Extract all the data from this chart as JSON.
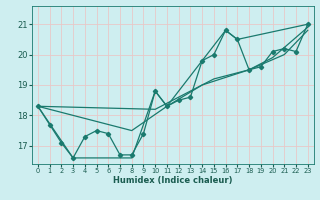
{
  "xlabel": "Humidex (Indice chaleur)",
  "background_color": "#ceeef0",
  "grid_color_v": "#e8c8c8",
  "grid_color_h": "#e8c8c8",
  "line_color": "#1a7a6e",
  "xlim": [
    -0.5,
    23.5
  ],
  "ylim": [
    16.4,
    21.6
  ],
  "xticks": [
    0,
    1,
    2,
    3,
    4,
    5,
    6,
    7,
    8,
    9,
    10,
    11,
    12,
    13,
    14,
    15,
    16,
    17,
    18,
    19,
    20,
    21,
    22,
    23
  ],
  "yticks": [
    17,
    18,
    19,
    20,
    21
  ],
  "series": [
    [
      0,
      18.3
    ],
    [
      1,
      17.7
    ],
    [
      2,
      17.1
    ],
    [
      3,
      16.6
    ],
    [
      4,
      17.3
    ],
    [
      5,
      17.5
    ],
    [
      6,
      17.4
    ],
    [
      7,
      16.7
    ],
    [
      8,
      16.7
    ],
    [
      9,
      17.4
    ],
    [
      10,
      18.8
    ],
    [
      11,
      18.3
    ],
    [
      12,
      18.5
    ],
    [
      13,
      18.6
    ],
    [
      14,
      19.8
    ],
    [
      15,
      20.0
    ],
    [
      16,
      20.8
    ],
    [
      17,
      20.5
    ],
    [
      18,
      19.5
    ],
    [
      19,
      19.6
    ],
    [
      20,
      20.1
    ],
    [
      21,
      20.2
    ],
    [
      22,
      20.1
    ],
    [
      23,
      21.0
    ]
  ],
  "line2": [
    [
      0,
      18.3
    ],
    [
      3,
      16.6
    ],
    [
      8,
      16.6
    ],
    [
      10,
      18.8
    ],
    [
      11,
      18.3
    ],
    [
      14,
      19.8
    ],
    [
      16,
      20.8
    ],
    [
      17,
      20.5
    ],
    [
      23,
      21.0
    ]
  ],
  "line3": [
    [
      0,
      18.3
    ],
    [
      10,
      18.2
    ],
    [
      15,
      19.2
    ],
    [
      18,
      19.5
    ],
    [
      20,
      19.9
    ],
    [
      23,
      20.9
    ]
  ],
  "line4": [
    [
      0,
      18.3
    ],
    [
      8,
      17.5
    ],
    [
      11,
      18.3
    ],
    [
      14,
      19.0
    ],
    [
      18,
      19.5
    ],
    [
      21,
      20.0
    ],
    [
      23,
      20.8
    ]
  ]
}
